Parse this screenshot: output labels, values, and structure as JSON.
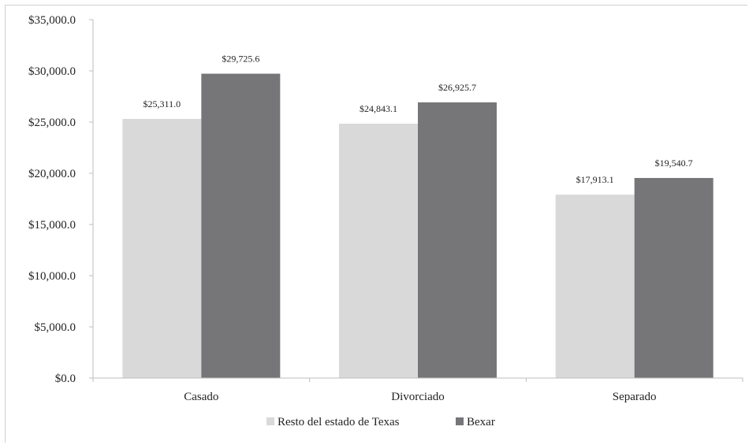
{
  "chart_data": {
    "type": "bar",
    "categories": [
      "Casado",
      "Divorciado",
      "Separado"
    ],
    "series": [
      {
        "name": "Resto del estado de Texas",
        "color": "#d9d9d9",
        "values": [
          25311.0,
          24843.1,
          17913.1
        ],
        "labels": [
          "$25,311.0",
          "$24,843.1",
          "$17,913.1"
        ]
      },
      {
        "name": "Bexar",
        "color": "#767678",
        "values": [
          29725.6,
          26925.7,
          19540.7
        ],
        "labels": [
          "$29,725.6",
          "$26,925.7",
          "$19,540.7"
        ]
      }
    ],
    "ylim": [
      0,
      35000
    ],
    "yticks": [
      0,
      5000,
      10000,
      15000,
      20000,
      25000,
      30000,
      35000
    ],
    "ytick_labels": [
      "$0.0",
      "$5,000.0",
      "$10,000.0",
      "$15,000.0",
      "$20,000.0",
      "$25,000.0",
      "$30,000.0",
      "$35,000.0"
    ],
    "grid": false,
    "legend_position": "bottom-center",
    "title": "",
    "xlabel": "",
    "ylabel": ""
  }
}
